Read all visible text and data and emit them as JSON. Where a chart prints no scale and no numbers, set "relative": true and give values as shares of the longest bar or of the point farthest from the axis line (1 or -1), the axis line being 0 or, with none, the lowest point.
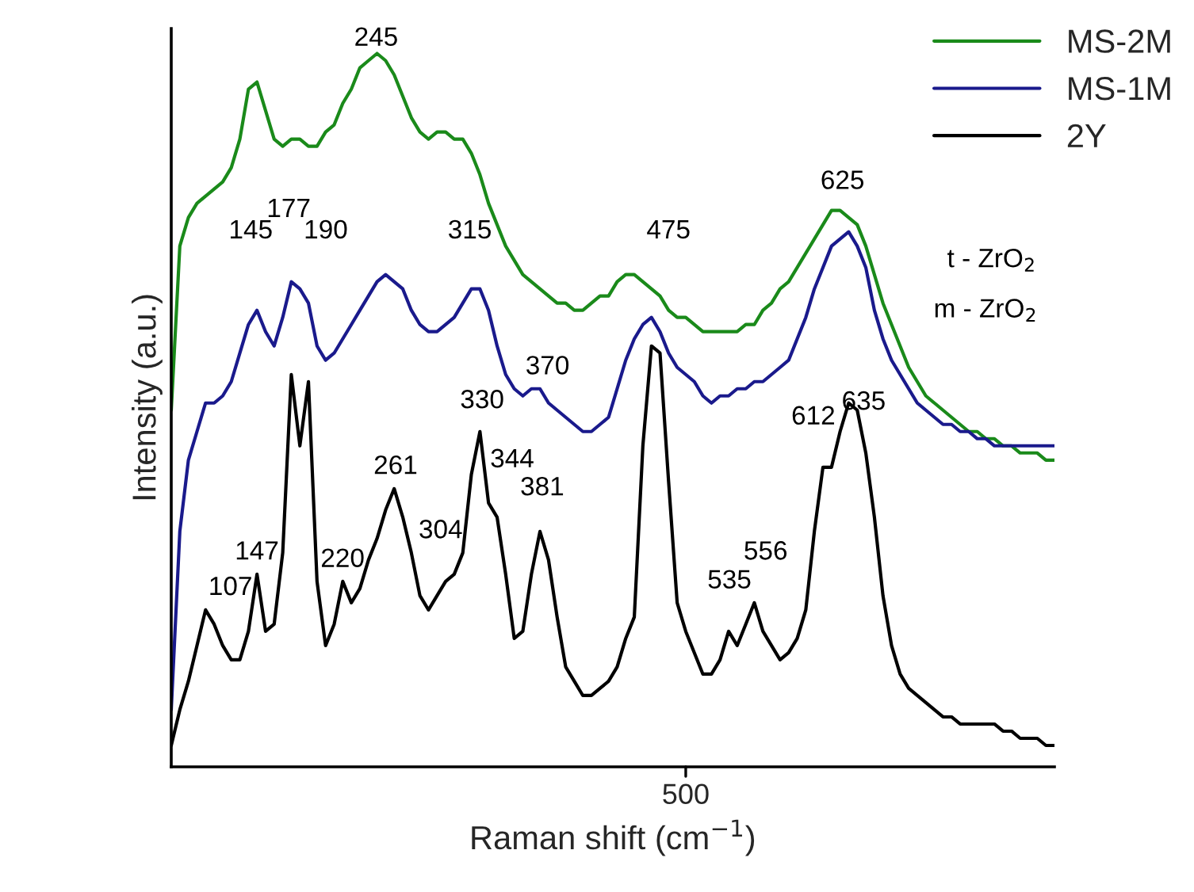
{
  "chart_data": {
    "type": "line",
    "relative": true,
    "xlabel": "Raman shift (cm$^{−1}$)",
    "ylabel": "Intensity (a.u.)",
    "legend": "top right",
    "categories": [
      null,
      null,
      null,
      null,
      null,
      null,
      null,
      null,
      null,
      null,
      null,
      null,
      null,
      null,
      null,
      null,
      null,
      null,
      null,
      null,
      null,
      null,
      null,
      null,
      null,
      null,
      null,
      null,
      null,
      null,
      null,
      null,
      null,
      null,
      null,
      null,
      null,
      null,
      null,
      null,
      null,
      null,
      null,
      null,
      null,
      null,
      null,
      null,
      null,
      null,
      null,
      null,
      null,
      null,
      null,
      null,
      null,
      null,
      null,
      null,
      null,
      null,
      null,
      null,
      null,
      null,
      null,
      null,
      null,
      null,
      null,
      null,
      null,
      null,
      null,
      null,
      null,
      null,
      null,
      null,
      null,
      null,
      null,
      null,
      null,
      null,
      null,
      null,
      null,
      null,
      null,
      null,
      null,
      null,
      null,
      null,
      null,
      null,
      null,
      null,
      null,
      null,
      null,
      null
    ],
    "series": [
      {
        "name": "MS-2M",
        "color": "#1a8a1a",
        "values": [
          0.5,
          0.73,
          0.77,
          0.79,
          0.8,
          0.81,
          0.82,
          0.84,
          0.88,
          0.95,
          0.96,
          0.92,
          0.88,
          0.87,
          0.88,
          0.88,
          0.87,
          0.87,
          0.89,
          0.9,
          0.93,
          0.95,
          0.98,
          0.99,
          1.0,
          0.99,
          0.97,
          0.94,
          0.91,
          0.89,
          0.88,
          0.89,
          0.89,
          0.88,
          0.88,
          0.86,
          0.83,
          0.79,
          0.76,
          0.73,
          0.71,
          0.69,
          0.68,
          0.67,
          0.66,
          0.65,
          0.65,
          0.64,
          0.64,
          0.65,
          0.66,
          0.66,
          0.68,
          0.69,
          0.69,
          0.68,
          0.67,
          0.66,
          0.64,
          0.63,
          0.63,
          0.62,
          0.61,
          0.61,
          0.61,
          0.61,
          0.61,
          0.62,
          0.62,
          0.64,
          0.65,
          0.67,
          0.68,
          0.7,
          0.72,
          0.74,
          0.76,
          0.78,
          0.78,
          0.77,
          0.76,
          0.73,
          0.69,
          0.65,
          0.62,
          0.59,
          0.56,
          0.54,
          0.52,
          0.51,
          0.5,
          0.49,
          0.48,
          0.47,
          0.47,
          0.46,
          0.46,
          0.45,
          0.45,
          0.44,
          0.44,
          0.44,
          0.43,
          0.43
        ]
      },
      {
        "name": "MS-1M",
        "color": "#1a1a8c",
        "values": [
          0.08,
          0.33,
          0.43,
          0.47,
          0.51,
          0.51,
          0.52,
          0.54,
          0.58,
          0.62,
          0.64,
          0.61,
          0.59,
          0.63,
          0.68,
          0.67,
          0.65,
          0.59,
          0.57,
          0.58,
          0.6,
          0.62,
          0.64,
          0.66,
          0.68,
          0.69,
          0.68,
          0.67,
          0.64,
          0.62,
          0.61,
          0.61,
          0.62,
          0.63,
          0.65,
          0.67,
          0.67,
          0.64,
          0.59,
          0.55,
          0.53,
          0.52,
          0.53,
          0.53,
          0.51,
          0.5,
          0.49,
          0.48,
          0.47,
          0.47,
          0.48,
          0.49,
          0.53,
          0.57,
          0.6,
          0.62,
          0.63,
          0.61,
          0.58,
          0.56,
          0.55,
          0.54,
          0.52,
          0.51,
          0.52,
          0.52,
          0.53,
          0.53,
          0.54,
          0.54,
          0.55,
          0.56,
          0.57,
          0.6,
          0.63,
          0.67,
          0.7,
          0.73,
          0.74,
          0.75,
          0.73,
          0.7,
          0.64,
          0.6,
          0.57,
          0.55,
          0.53,
          0.51,
          0.5,
          0.49,
          0.48,
          0.48,
          0.47,
          0.47,
          0.46,
          0.46,
          0.45,
          0.45,
          0.45,
          0.45,
          0.45,
          0.45,
          0.45,
          0.45
        ]
      },
      {
        "name": "2Y",
        "color": "#000000",
        "values": [
          0.03,
          0.08,
          0.12,
          0.17,
          0.22,
          0.2,
          0.17,
          0.15,
          0.15,
          0.19,
          0.27,
          0.19,
          0.2,
          0.3,
          0.55,
          0.45,
          0.54,
          0.26,
          0.17,
          0.2,
          0.26,
          0.23,
          0.25,
          0.29,
          0.32,
          0.36,
          0.39,
          0.35,
          0.3,
          0.24,
          0.22,
          0.24,
          0.26,
          0.27,
          0.3,
          0.41,
          0.47,
          0.37,
          0.35,
          0.27,
          0.18,
          0.19,
          0.27,
          0.33,
          0.29,
          0.21,
          0.14,
          0.12,
          0.1,
          0.1,
          0.11,
          0.12,
          0.14,
          0.18,
          0.21,
          0.45,
          0.59,
          0.58,
          0.4,
          0.23,
          0.19,
          0.16,
          0.13,
          0.13,
          0.15,
          0.19,
          0.17,
          0.2,
          0.23,
          0.19,
          0.17,
          0.15,
          0.16,
          0.18,
          0.22,
          0.33,
          0.42,
          0.42,
          0.47,
          0.51,
          0.5,
          0.44,
          0.35,
          0.24,
          0.17,
          0.13,
          0.11,
          0.1,
          0.09,
          0.08,
          0.07,
          0.07,
          0.06,
          0.06,
          0.06,
          0.06,
          0.06,
          0.05,
          0.05,
          0.04,
          0.04,
          0.04,
          0.03,
          0.03
        ]
      }
    ],
    "annotations": [
      "500",
      "245",
      "145",
      "177",
      "190",
      "315",
      "370",
      "475",
      "625",
      "t - ZrO$_{2}$",
      "m - ZrO$_{2}$",
      "107",
      "147",
      "220",
      "261",
      "304",
      "330",
      "344",
      "381",
      "535",
      "556",
      "612",
      "635"
    ]
  }
}
